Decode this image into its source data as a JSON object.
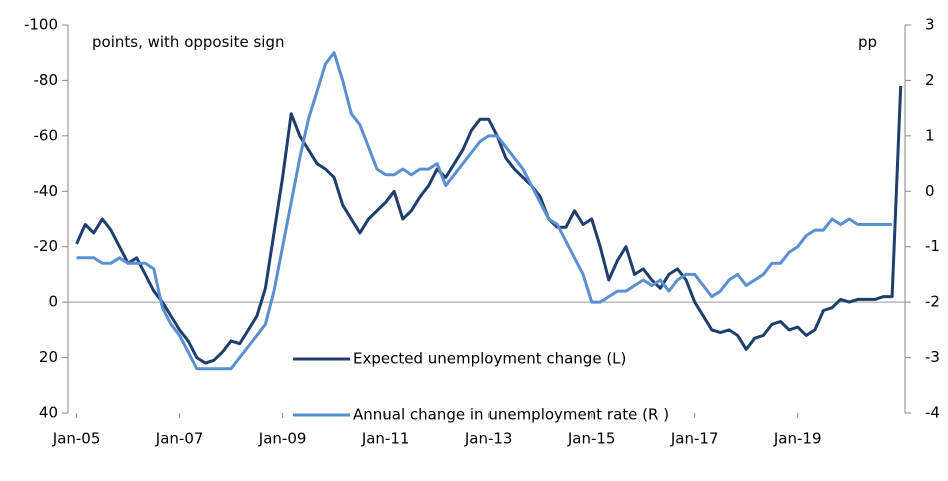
{
  "chart_data": {
    "type": "line",
    "annotations": [
      "points, with opposite sign",
      "pp"
    ],
    "x": [
      "2005-01",
      "2005-03",
      "2005-05",
      "2005-07",
      "2005-09",
      "2005-11",
      "2006-01",
      "2006-03",
      "2006-05",
      "2006-07",
      "2006-09",
      "2006-11",
      "2007-01",
      "2007-03",
      "2007-05",
      "2007-07",
      "2007-09",
      "2007-11",
      "2008-01",
      "2008-03",
      "2008-05",
      "2008-07",
      "2008-09",
      "2008-11",
      "2009-01",
      "2009-03",
      "2009-05",
      "2009-07",
      "2009-09",
      "2009-11",
      "2010-01",
      "2010-03",
      "2010-05",
      "2010-07",
      "2010-09",
      "2010-11",
      "2011-01",
      "2011-03",
      "2011-05",
      "2011-07",
      "2011-09",
      "2011-11",
      "2012-01",
      "2012-03",
      "2012-05",
      "2012-07",
      "2012-09",
      "2012-11",
      "2013-01",
      "2013-03",
      "2013-05",
      "2013-07",
      "2013-09",
      "2013-11",
      "2014-01",
      "2014-03",
      "2014-05",
      "2014-07",
      "2014-09",
      "2014-11",
      "2015-01",
      "2015-03",
      "2015-05",
      "2015-07",
      "2015-09",
      "2015-11",
      "2016-01",
      "2016-03",
      "2016-05",
      "2016-07",
      "2016-09",
      "2016-11",
      "2017-01",
      "2017-03",
      "2017-05",
      "2017-07",
      "2017-09",
      "2017-11",
      "2018-01",
      "2018-03",
      "2018-05",
      "2018-07",
      "2018-09",
      "2018-11",
      "2019-01",
      "2019-03",
      "2019-05",
      "2019-07",
      "2019-09",
      "2019-11",
      "2020-01",
      "2020-03",
      "2020-05",
      "2020-07",
      "2020-09",
      "2020-11",
      "2021-01"
    ],
    "series": [
      {
        "name": "Expected unemployment change (L)",
        "color": "#1f3e6e",
        "axis": "y",
        "values": [
          -21,
          -28,
          -25,
          -30,
          -26,
          -20,
          -14,
          -16,
          -10,
          -4,
          0,
          5,
          10,
          14,
          20,
          22,
          21,
          18,
          14,
          15,
          10,
          5,
          -5,
          -25,
          -45,
          -68,
          -60,
          -55,
          -50,
          -48,
          -45,
          -35,
          -30,
          -25,
          -30,
          -33,
          -36,
          -40,
          -30,
          -33,
          -38,
          -42,
          -48,
          -45,
          -50,
          -55,
          -62,
          -66,
          -66,
          -60,
          -52,
          -48,
          -45,
          -42,
          -38,
          -30,
          -27,
          -27,
          -33,
          -28,
          -30,
          -20,
          -8,
          -15,
          -20,
          -10,
          -12,
          -8,
          -5,
          -10,
          -12,
          -8,
          0,
          5,
          10,
          11,
          10,
          12,
          17,
          13,
          12,
          8,
          7,
          10,
          9,
          12,
          10,
          3,
          2,
          -1,
          0,
          -1,
          -1,
          -1,
          -2,
          -2,
          -78
        ]
      },
      {
        "name": "Annual change in unemployment rate (R )",
        "color": "#5b8fd0",
        "axis": "y2",
        "values": [
          -1.2,
          -1.2,
          -1.2,
          -1.3,
          -1.3,
          -1.2,
          -1.3,
          -1.3,
          -1.3,
          -1.4,
          -2.1,
          -2.4,
          -2.6,
          -2.9,
          -3.2,
          -3.2,
          -3.2,
          -3.2,
          -3.2,
          -3.0,
          -2.8,
          -2.6,
          -2.4,
          -1.8,
          -1.0,
          -0.2,
          0.6,
          1.3,
          1.8,
          2.3,
          2.5,
          2.0,
          1.4,
          1.2,
          0.8,
          0.4,
          0.3,
          0.3,
          0.4,
          0.3,
          0.4,
          0.4,
          0.5,
          0.1,
          0.3,
          0.5,
          0.7,
          0.9,
          1.0,
          1.0,
          0.8,
          0.6,
          0.4,
          0.1,
          -0.2,
          -0.5,
          -0.6,
          -0.9,
          -1.2,
          -1.5,
          -2.0,
          -2.0,
          -1.9,
          -1.8,
          -1.8,
          -1.7,
          -1.6,
          -1.7,
          -1.6,
          -1.8,
          -1.6,
          -1.5,
          -1.5,
          -1.7,
          -1.9,
          -1.8,
          -1.6,
          -1.5,
          -1.7,
          -1.6,
          -1.5,
          -1.3,
          -1.3,
          -1.1,
          -1.0,
          -0.8,
          -0.7,
          -0.7,
          -0.5,
          -0.6,
          -0.5,
          -0.6,
          -0.6,
          -0.6,
          -0.6,
          -0.6,
          null
        ]
      }
    ],
    "xlim": [
      "2004-11",
      "2021-02"
    ],
    "xticks": [
      {
        "value": "2005-01",
        "label": "Jan-05"
      },
      {
        "value": "2007-01",
        "label": "Jan-07"
      },
      {
        "value": "2009-01",
        "label": "Jan-09"
      },
      {
        "value": "2011-01",
        "label": "Jan-11"
      },
      {
        "value": "2013-01",
        "label": "Jan-13"
      },
      {
        "value": "2015-01",
        "label": "Jan-15"
      },
      {
        "value": "2017-01",
        "label": "Jan-17"
      },
      {
        "value": "2019-01",
        "label": "Jan-19"
      }
    ],
    "ylim": [
      -100,
      40
    ],
    "y_inverted": true,
    "yticks": [
      -100,
      -80,
      -60,
      -40,
      -20,
      0,
      20,
      40
    ],
    "y2lim": [
      -4,
      3
    ],
    "y2ticks": [
      -4,
      -3,
      -2,
      -1,
      0,
      1,
      2,
      3
    ],
    "legend": "center"
  }
}
